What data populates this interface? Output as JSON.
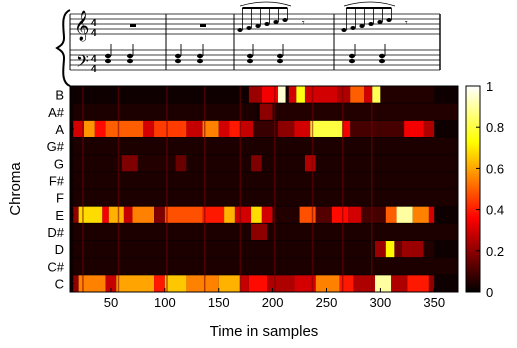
{
  "chart_data": {
    "type": "heatmap",
    "title": "",
    "xlabel": "Time in samples",
    "ylabel": "Chroma",
    "xlim": [
      12,
      372
    ],
    "x_ticks": [
      50,
      100,
      150,
      200,
      250,
      300,
      350
    ],
    "y_categories": [
      "B",
      "A#",
      "A",
      "G#",
      "G",
      "F#",
      "F",
      "E",
      "D#",
      "D",
      "C#",
      "C"
    ],
    "colorbar": {
      "colormap": "hot",
      "ticks": [
        0,
        0.2,
        0.4,
        0.6,
        0.8,
        1
      ],
      "range": [
        0,
        1
      ]
    },
    "segments": {
      "B": [
        [
          15,
          175,
          0.02
        ],
        [
          178,
          190,
          0.22
        ],
        [
          190,
          205,
          0.35
        ],
        [
          205,
          212,
          0.95
        ],
        [
          215,
          222,
          0.3
        ],
        [
          222,
          230,
          0.75
        ],
        [
          230,
          260,
          0.3
        ],
        [
          260,
          272,
          0.25
        ],
        [
          272,
          285,
          0.5
        ],
        [
          285,
          292,
          0.3
        ],
        [
          292,
          300,
          0.82
        ],
        [
          300,
          350,
          0.05
        ],
        [
          350,
          372,
          0.02
        ]
      ],
      "A#": [
        [
          15,
          185,
          0.04
        ],
        [
          188,
          200,
          0.2
        ],
        [
          200,
          372,
          0.05
        ]
      ],
      "A": [
        [
          15,
          25,
          0.3
        ],
        [
          25,
          35,
          0.58
        ],
        [
          35,
          45,
          0.38
        ],
        [
          45,
          80,
          0.5
        ],
        [
          80,
          90,
          0.3
        ],
        [
          90,
          120,
          0.45
        ],
        [
          120,
          135,
          0.28
        ],
        [
          135,
          150,
          0.55
        ],
        [
          150,
          160,
          0.3
        ],
        [
          160,
          170,
          0.4
        ],
        [
          170,
          182,
          0.28
        ],
        [
          182,
          205,
          0.08
        ],
        [
          205,
          220,
          0.2
        ],
        [
          220,
          235,
          0.3
        ],
        [
          235,
          265,
          0.8
        ],
        [
          265,
          272,
          0.35
        ],
        [
          272,
          300,
          0.1
        ],
        [
          300,
          322,
          0.1
        ],
        [
          322,
          340,
          0.35
        ],
        [
          340,
          350,
          0.25
        ],
        [
          350,
          372,
          0.02
        ]
      ],
      "G#": [
        [
          15,
          372,
          0.04
        ]
      ],
      "G": [
        [
          15,
          60,
          0.04
        ],
        [
          60,
          75,
          0.18
        ],
        [
          75,
          110,
          0.05
        ],
        [
          110,
          120,
          0.15
        ],
        [
          120,
          180,
          0.04
        ],
        [
          180,
          190,
          0.18
        ],
        [
          190,
          230,
          0.04
        ],
        [
          230,
          240,
          0.25
        ],
        [
          240,
          372,
          0.04
        ]
      ],
      "F#": [
        [
          15,
          372,
          0.04
        ]
      ],
      "F": [
        [
          15,
          372,
          0.04
        ]
      ],
      "E": [
        [
          15,
          20,
          0.2
        ],
        [
          20,
          42,
          0.68
        ],
        [
          42,
          48,
          0.35
        ],
        [
          48,
          62,
          0.62
        ],
        [
          62,
          70,
          0.28
        ],
        [
          70,
          90,
          0.55
        ],
        [
          90,
          100,
          0.18
        ],
        [
          100,
          135,
          0.48
        ],
        [
          135,
          155,
          0.4
        ],
        [
          155,
          165,
          0.62
        ],
        [
          165,
          180,
          0.3
        ],
        [
          180,
          190,
          0.68
        ],
        [
          190,
          200,
          0.3
        ],
        [
          200,
          225,
          0.05
        ],
        [
          225,
          240,
          0.48
        ],
        [
          240,
          255,
          0.12
        ],
        [
          255,
          270,
          0.38
        ],
        [
          270,
          282,
          0.3
        ],
        [
          282,
          305,
          0.1
        ],
        [
          305,
          315,
          0.5
        ],
        [
          315,
          330,
          0.9
        ],
        [
          330,
          345,
          0.55
        ],
        [
          345,
          350,
          0.3
        ],
        [
          350,
          372,
          0.02
        ]
      ],
      "D#": [
        [
          15,
          180,
          0.04
        ],
        [
          180,
          195,
          0.2
        ],
        [
          195,
          372,
          0.04
        ]
      ],
      "D": [
        [
          15,
          295,
          0.04
        ],
        [
          295,
          305,
          0.22
        ],
        [
          305,
          313,
          0.72
        ],
        [
          313,
          320,
          0.15
        ],
        [
          320,
          340,
          0.22
        ],
        [
          340,
          350,
          0.05
        ],
        [
          350,
          372,
          0.02
        ]
      ],
      "C#": [
        [
          15,
          372,
          0.04
        ]
      ],
      "C": [
        [
          15,
          20,
          0.2
        ],
        [
          20,
          45,
          0.55
        ],
        [
          45,
          55,
          0.28
        ],
        [
          55,
          90,
          0.6
        ],
        [
          90,
          100,
          0.4
        ],
        [
          100,
          120,
          0.65
        ],
        [
          120,
          150,
          0.55
        ],
        [
          150,
          170,
          0.62
        ],
        [
          170,
          178,
          0.28
        ],
        [
          178,
          195,
          0.38
        ],
        [
          195,
          220,
          0.25
        ],
        [
          220,
          240,
          0.3
        ],
        [
          240,
          262,
          0.55
        ],
        [
          262,
          275,
          0.4
        ],
        [
          275,
          295,
          0.25
        ],
        [
          295,
          310,
          0.9
        ],
        [
          310,
          325,
          0.25
        ],
        [
          325,
          345,
          0.4
        ],
        [
          345,
          350,
          0.2
        ],
        [
          350,
          372,
          0.02
        ]
      ]
    },
    "vertical_lines": [
      24,
      57,
      102,
      137,
      170,
      202,
      237,
      265,
      292
    ],
    "edge_value": 0.02
  },
  "score": {
    "treble_time_signature": [
      "4",
      "4"
    ],
    "bass_time_signature": [
      "4",
      "4"
    ]
  },
  "colors": {
    "background": "#ffffff",
    "axis": "#000000",
    "staff": "#000000"
  }
}
